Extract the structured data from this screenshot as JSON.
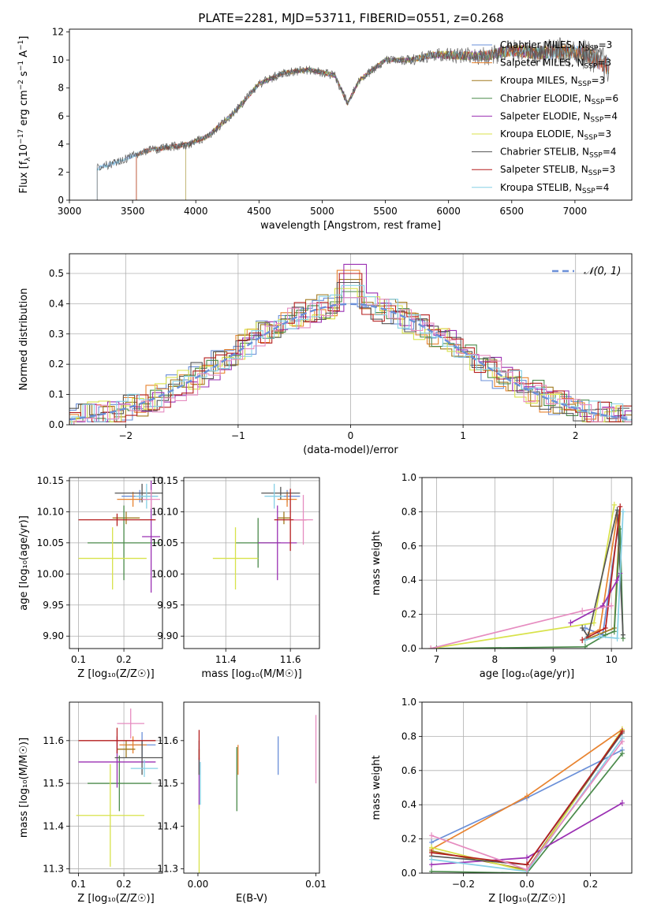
{
  "title": "PLATE=2281, MJD=53711, FIBERID=0551, z=0.268",
  "colors": [
    "#6a8fd8",
    "#e8832f",
    "#a0791e",
    "#4a8a4a",
    "#9b30b3",
    "#d8e24a",
    "#555555",
    "#b51f1f",
    "#86d0e6",
    "#e68cc0"
  ],
  "chart_data": [
    {
      "id": "spectrum",
      "type": "line",
      "xlabel": "wavelength [Angstrom, rest frame]",
      "ylabel": "Flux [f$_\\lambda$10$^{-17}$ erg cm$^{-2}$ s$^{-1}$ A$^{-1}$]",
      "ylabel_parts": [
        "Flux [f",
        "λ",
        "10",
        "−17",
        " erg cm",
        "−2",
        " s",
        "−1",
        " A",
        "−1",
        "]"
      ],
      "xlim": [
        3000,
        7450
      ],
      "ylim": [
        0,
        12.2
      ],
      "xticks": [
        3000,
        3500,
        4000,
        4500,
        5000,
        5500,
        6000,
        6500,
        7000
      ],
      "yticks": [
        0,
        2,
        4,
        6,
        8,
        10,
        12
      ],
      "grid": false,
      "legend_position": "top-right",
      "series": [
        {
          "name": "Chabrier MILES, N_SSP=3",
          "legend_pre": "Chabrier MILES, N",
          "legend_sub": "SSP",
          "legend_post": "=3"
        },
        {
          "name": "Salpeter MILES, N_SSP=3",
          "legend_pre": "Salpeter MILES, N",
          "legend_sub": "SSP",
          "legend_post": "=3"
        },
        {
          "name": "Kroupa MILES, N_SSP=3",
          "legend_pre": "Kroupa MILES, N",
          "legend_sub": "SSP",
          "legend_post": "=3"
        },
        {
          "name": "Chabrier ELODIE, N_SSP=6",
          "legend_pre": "Chabrier ELODIE, N",
          "legend_sub": "SSP",
          "legend_post": "=6"
        },
        {
          "name": "Salpeter ELODIE, N_SSP=4",
          "legend_pre": "Salpeter ELODIE, N",
          "legend_sub": "SSP",
          "legend_post": "=4"
        },
        {
          "name": "Kroupa ELODIE, N_SSP=3",
          "legend_pre": "Kroupa ELODIE, N",
          "legend_sub": "SSP",
          "legend_post": "=3"
        },
        {
          "name": "Chabrier STELIB, N_SSP=4",
          "legend_pre": "Chabrier STELIB, N",
          "legend_sub": "SSP",
          "legend_post": "=4"
        },
        {
          "name": "Salpeter STELIB, N_SSP=3",
          "legend_pre": "Salpeter STELIB, N",
          "legend_sub": "SSP",
          "legend_post": "=3"
        },
        {
          "name": "Kroupa STELIB, N_SSP=4",
          "legend_pre": "Kroupa STELIB, N",
          "legend_sub": "SSP",
          "legend_post": "=4"
        }
      ],
      "data_shape": {
        "x": [
          3200,
          3400,
          3600,
          3800,
          3950,
          4100,
          4300,
          4500,
          4700,
          4900,
          5100,
          5200,
          5300,
          5500,
          5700,
          5900,
          6100,
          6300,
          6500,
          6700,
          6900,
          7100,
          7250
        ],
        "y": [
          2.2,
          2.8,
          3.5,
          3.8,
          4.0,
          4.6,
          6.2,
          8.3,
          9.1,
          9.3,
          8.9,
          6.9,
          8.6,
          10.0,
          10.0,
          10.4,
          10.3,
          10.3,
          10.7,
          10.5,
          10.6,
          10.4,
          9.6
        ]
      },
      "series_starts": [
        3220,
        3530,
        3530,
        3920,
        3920,
        3920,
        3220,
        3530,
        3220
      ],
      "series_end": [
        7270,
        7270,
        7270,
        6780,
        6780,
        6780,
        7270,
        7270,
        7270
      ]
    },
    {
      "id": "residuals",
      "type": "histogram",
      "xlabel": "(data-model)/error",
      "ylabel": "Normed distribution",
      "xlim": [
        -2.5,
        2.5
      ],
      "ylim": [
        0,
        0.565
      ],
      "xticks": [
        -2,
        -1,
        0,
        1,
        2
      ],
      "xtick_labels": [
        "−2",
        "−1",
        "0",
        "1",
        "2"
      ],
      "yticks": [
        0,
        0.1,
        0.2,
        0.3,
        0.4,
        0.5
      ],
      "ytick_labels": [
        "0.0",
        "0.1",
        "0.2",
        "0.3",
        "0.4",
        "0.5"
      ],
      "grid": true,
      "legend_position": "top-right",
      "reference": {
        "name": "N(0,1)",
        "legend_text": "𝒩(0, 1)",
        "mean": 0,
        "sigma": 1
      },
      "bin_width": 0.1,
      "peak_values": [
        0.42,
        0.51,
        0.48,
        0.44,
        0.53,
        0.45,
        0.47,
        0.5,
        0.46
      ]
    },
    {
      "id": "age_vs_Z",
      "type": "errorbar",
      "xlabel": "Z [log₁₀(Z/Z☉)]",
      "ylabel": "age  [log₁₀(age/yr)]",
      "xlim": [
        0.08,
        0.285
      ],
      "ylim": [
        9.88,
        10.155
      ],
      "xticks": [
        0.1,
        0.2
      ],
      "xtick_labels": [
        "0.1",
        "0.2"
      ],
      "yticks": [
        9.9,
        9.95,
        10.0,
        10.05,
        10.1,
        10.15
      ],
      "ytick_labels": [
        "9.90",
        "9.95",
        "10.00",
        "10.05",
        "10.10",
        "10.15"
      ],
      "grid": true,
      "points": [
        {
          "x": 0.235,
          "y": 10.125,
          "xerr": 0.04,
          "yerr": 0.01
        },
        {
          "x": 0.22,
          "y": 10.12,
          "xerr": 0.035,
          "yerr": 0.012
        },
        {
          "x": 0.205,
          "y": 10.09,
          "xerr": 0.03,
          "yerr": 0.01
        },
        {
          "x": 0.2,
          "y": 10.05,
          "xerr": 0.08,
          "yerr": 0.06
        },
        {
          "x": 0.26,
          "y": 10.06,
          "xerr": 0.02,
          "yerr": 0.09
        },
        {
          "x": 0.175,
          "y": 10.025,
          "xerr": 0.075,
          "yerr": 0.05
        },
        {
          "x": 0.24,
          "y": 10.13,
          "xerr": 0.06,
          "yerr": 0.015
        },
        {
          "x": 0.185,
          "y": 10.087,
          "xerr": 0.085,
          "yerr": 0.01
        },
        {
          "x": 0.25,
          "y": 10.125,
          "xerr": 0.025,
          "yerr": 0.02
        },
        {
          "x": 0.26,
          "y": 10.12,
          "xerr": 0.02,
          "yerr": 0.015
        }
      ]
    },
    {
      "id": "age_vs_mass",
      "type": "errorbar",
      "xlabel": "mass [log₁₀(M/M☉)]",
      "ylabel": "",
      "xlim": [
        11.27,
        11.69
      ],
      "ylim": [
        9.88,
        10.155
      ],
      "xticks": [
        11.4,
        11.6
      ],
      "xtick_labels": [
        "11.4",
        "11.6"
      ],
      "yticks": [
        9.9,
        9.95,
        10.0,
        10.05,
        10.1,
        10.15
      ],
      "ytick_labels": [
        "9.90",
        "9.95",
        "10.00",
        "10.05",
        "10.10",
        "10.15"
      ],
      "grid": true,
      "points": [
        {
          "x": 11.59,
          "y": 10.125,
          "xerr": 0.04,
          "yerr": 0.01
        },
        {
          "x": 11.59,
          "y": 10.12,
          "xerr": 0.03,
          "yerr": 0.012
        },
        {
          "x": 11.58,
          "y": 10.09,
          "xerr": 0.02,
          "yerr": 0.01
        },
        {
          "x": 11.5,
          "y": 10.05,
          "xerr": 0.07,
          "yerr": 0.04
        },
        {
          "x": 11.56,
          "y": 10.05,
          "xerr": 0.06,
          "yerr": 0.06
        },
        {
          "x": 11.43,
          "y": 10.025,
          "xerr": 0.07,
          "yerr": 0.05
        },
        {
          "x": 11.57,
          "y": 10.13,
          "xerr": 0.06,
          "yerr": 0.01
        },
        {
          "x": 11.6,
          "y": 10.087,
          "xerr": 0.05,
          "yerr": 0.05
        },
        {
          "x": 11.55,
          "y": 10.125,
          "xerr": 0.03,
          "yerr": 0.02
        },
        {
          "x": 11.64,
          "y": 10.087,
          "xerr": 0.03,
          "yerr": 0.04
        }
      ]
    },
    {
      "id": "weight_vs_age",
      "type": "line",
      "xlabel": "age  [log₁₀(age/yr)]",
      "ylabel": "mass weight",
      "xlim": [
        6.75,
        10.35
      ],
      "ylim": [
        0,
        1.0
      ],
      "xticks": [
        7,
        8,
        9,
        10
      ],
      "xtick_labels": [
        "7",
        "8",
        "9",
        "10"
      ],
      "yticks": [
        0,
        0.2,
        0.4,
        0.6,
        0.8,
        1.0
      ],
      "ytick_labels": [
        "0.0",
        "0.2",
        "0.4",
        "0.6",
        "0.8",
        "1.0"
      ],
      "grid": true,
      "series": [
        {
          "x": [
            9.55,
            9.85,
            10.15
          ],
          "y": [
            0.12,
            0.08,
            0.8
          ]
        },
        {
          "x": [
            9.6,
            9.8,
            10.1
          ],
          "y": [
            0.08,
            0.11,
            0.78
          ]
        },
        {
          "x": [
            9.55,
            10.05,
            10.15
          ],
          "y": [
            0.05,
            0.12,
            0.8
          ]
        },
        {
          "x": [
            7.0,
            9.55,
            9.9,
            10.05,
            10.15,
            10.2
          ],
          "y": [
            0.0,
            0.01,
            0.08,
            0.1,
            0.7,
            0.06
          ]
        },
        {
          "x": [
            9.3,
            9.85,
            10.1,
            10.15
          ],
          "y": [
            0.15,
            0.25,
            0.4,
            0.44
          ]
        },
        {
          "x": [
            6.9,
            9.7,
            10.05
          ],
          "y": [
            0.0,
            0.15,
            0.84
          ]
        },
        {
          "x": [
            9.5,
            9.6,
            10.1,
            10.2
          ],
          "y": [
            0.12,
            0.07,
            0.81,
            0.08
          ]
        },
        {
          "x": [
            9.5,
            9.9,
            10.15
          ],
          "y": [
            0.05,
            0.12,
            0.83
          ]
        },
        {
          "x": [
            9.55,
            9.8,
            10.1,
            10.2
          ],
          "y": [
            0.05,
            0.07,
            0.06,
            0.8
          ]
        },
        {
          "x": [
            6.9,
            9.5,
            10.0
          ],
          "y": [
            0.0,
            0.22,
            0.25
          ]
        }
      ]
    },
    {
      "id": "mass_vs_Z",
      "type": "errorbar",
      "xlabel": "Z [log₁₀(Z/Z☉)]",
      "ylabel": "mass [log₁₀(M/M☉)]",
      "xlim": [
        0.08,
        0.285
      ],
      "ylim": [
        11.29,
        11.69
      ],
      "xticks": [
        0.1,
        0.2
      ],
      "xtick_labels": [
        "0.1",
        "0.2"
      ],
      "yticks": [
        11.3,
        11.4,
        11.5,
        11.6
      ],
      "ytick_labels": [
        "11.3",
        "11.4",
        "11.5",
        "11.6"
      ],
      "grid": true,
      "points": [
        {
          "x": 0.24,
          "y": 11.59,
          "xerr": 0.03,
          "yerr": 0.03
        },
        {
          "x": 0.22,
          "y": 11.59,
          "xerr": 0.03,
          "yerr": 0.02
        },
        {
          "x": 0.205,
          "y": 11.58,
          "xerr": 0.02,
          "yerr": 0.02
        },
        {
          "x": 0.19,
          "y": 11.5,
          "xerr": 0.07,
          "yerr": 0.065
        },
        {
          "x": 0.185,
          "y": 11.55,
          "xerr": 0.085,
          "yerr": 0.06
        },
        {
          "x": 0.17,
          "y": 11.425,
          "xerr": 0.075,
          "yerr": 0.12
        },
        {
          "x": 0.24,
          "y": 11.56,
          "xerr": 0.06,
          "yerr": 0.04
        },
        {
          "x": 0.185,
          "y": 11.6,
          "xerr": 0.085,
          "yerr": 0.03
        },
        {
          "x": 0.245,
          "y": 11.535,
          "xerr": 0.03,
          "yerr": 0.02
        },
        {
          "x": 0.215,
          "y": 11.64,
          "xerr": 0.03,
          "yerr": 0.035
        }
      ]
    },
    {
      "id": "mass_vs_EBV",
      "type": "errorbar",
      "xlabel": "E(B-V)",
      "ylabel": "",
      "xlim": [
        -0.0012,
        0.0103
      ],
      "ylim": [
        11.29,
        11.69
      ],
      "xticks": [
        0.0,
        0.01
      ],
      "xtick_labels": [
        "0.00",
        "0.01"
      ],
      "yticks": [
        11.3,
        11.4,
        11.5,
        11.6
      ],
      "ytick_labels": [
        "11.3",
        "11.4",
        "11.5",
        "11.6"
      ],
      "grid": false,
      "points": [
        {
          "x": 0.0068,
          "y": 11.565,
          "xerr": 0,
          "yerr": 0.045
        },
        {
          "x": 0.0034,
          "y": 11.555,
          "xerr": 0,
          "yerr": 0.035
        },
        {
          "x": 0.0001,
          "y": 11.55,
          "xerr": 0,
          "yerr": 0.03
        },
        {
          "x": 0.0033,
          "y": 11.51,
          "xerr": 0,
          "yerr": 0.075
        },
        {
          "x": 0.0001,
          "y": 11.5,
          "xerr": 0,
          "yerr": 0.06
        },
        {
          "x": 0.0001,
          "y": 11.37,
          "xerr": 0,
          "yerr": 0.08
        },
        {
          "x": 0.0001,
          "y": 11.56,
          "xerr": 0,
          "yerr": 0.04
        },
        {
          "x": 0.0001,
          "y": 11.59,
          "xerr": 0,
          "yerr": 0.035
        },
        {
          "x": 0.0002,
          "y": 11.5,
          "xerr": 0,
          "yerr": 0.05
        },
        {
          "x": 0.01,
          "y": 11.58,
          "xerr": 0,
          "yerr": 0.08
        }
      ]
    },
    {
      "id": "weight_vs_Z",
      "type": "line",
      "xlabel": "Z [log₁₀(Z/Z☉)]",
      "ylabel": "mass weight",
      "xlim": [
        -0.33,
        0.33
      ],
      "ylim": [
        0,
        1.0
      ],
      "xticks": [
        -0.2,
        0.0,
        0.2
      ],
      "xtick_labels": [
        "−0.2",
        "0.0",
        "0.2"
      ],
      "yticks": [
        0,
        0.2,
        0.4,
        0.6,
        0.8,
        1.0
      ],
      "ytick_labels": [
        "0.0",
        "0.2",
        "0.4",
        "0.6",
        "0.8",
        "1.0"
      ],
      "grid": true,
      "series": [
        {
          "x": [
            -0.3,
            0.0,
            0.3
          ],
          "y": [
            0.18,
            0.44,
            0.72
          ]
        },
        {
          "x": [
            -0.3,
            0.0,
            0.3
          ],
          "y": [
            0.14,
            0.45,
            0.84
          ]
        },
        {
          "x": [
            -0.3,
            0.0,
            0.3
          ],
          "y": [
            0.13,
            0.02,
            0.83
          ]
        },
        {
          "x": [
            -0.3,
            0.0,
            0.3
          ],
          "y": [
            0.01,
            0.0,
            0.7
          ]
        },
        {
          "x": [
            -0.3,
            0.0,
            0.3
          ],
          "y": [
            0.05,
            0.09,
            0.41
          ]
        },
        {
          "x": [
            -0.3,
            0.0,
            0.3
          ],
          "y": [
            0.15,
            0.01,
            0.84
          ]
        },
        {
          "x": [
            -0.3,
            0.0,
            0.3
          ],
          "y": [
            0.1,
            0.05,
            0.82
          ]
        },
        {
          "x": [
            -0.3,
            0.0,
            0.3
          ],
          "y": [
            0.12,
            0.05,
            0.83
          ]
        },
        {
          "x": [
            -0.3,
            0.0,
            0.3
          ],
          "y": [
            0.08,
            0.01,
            0.79
          ]
        },
        {
          "x": [
            -0.3,
            0.0,
            0.3
          ],
          "y": [
            0.22,
            0.02,
            0.77
          ]
        }
      ]
    }
  ]
}
